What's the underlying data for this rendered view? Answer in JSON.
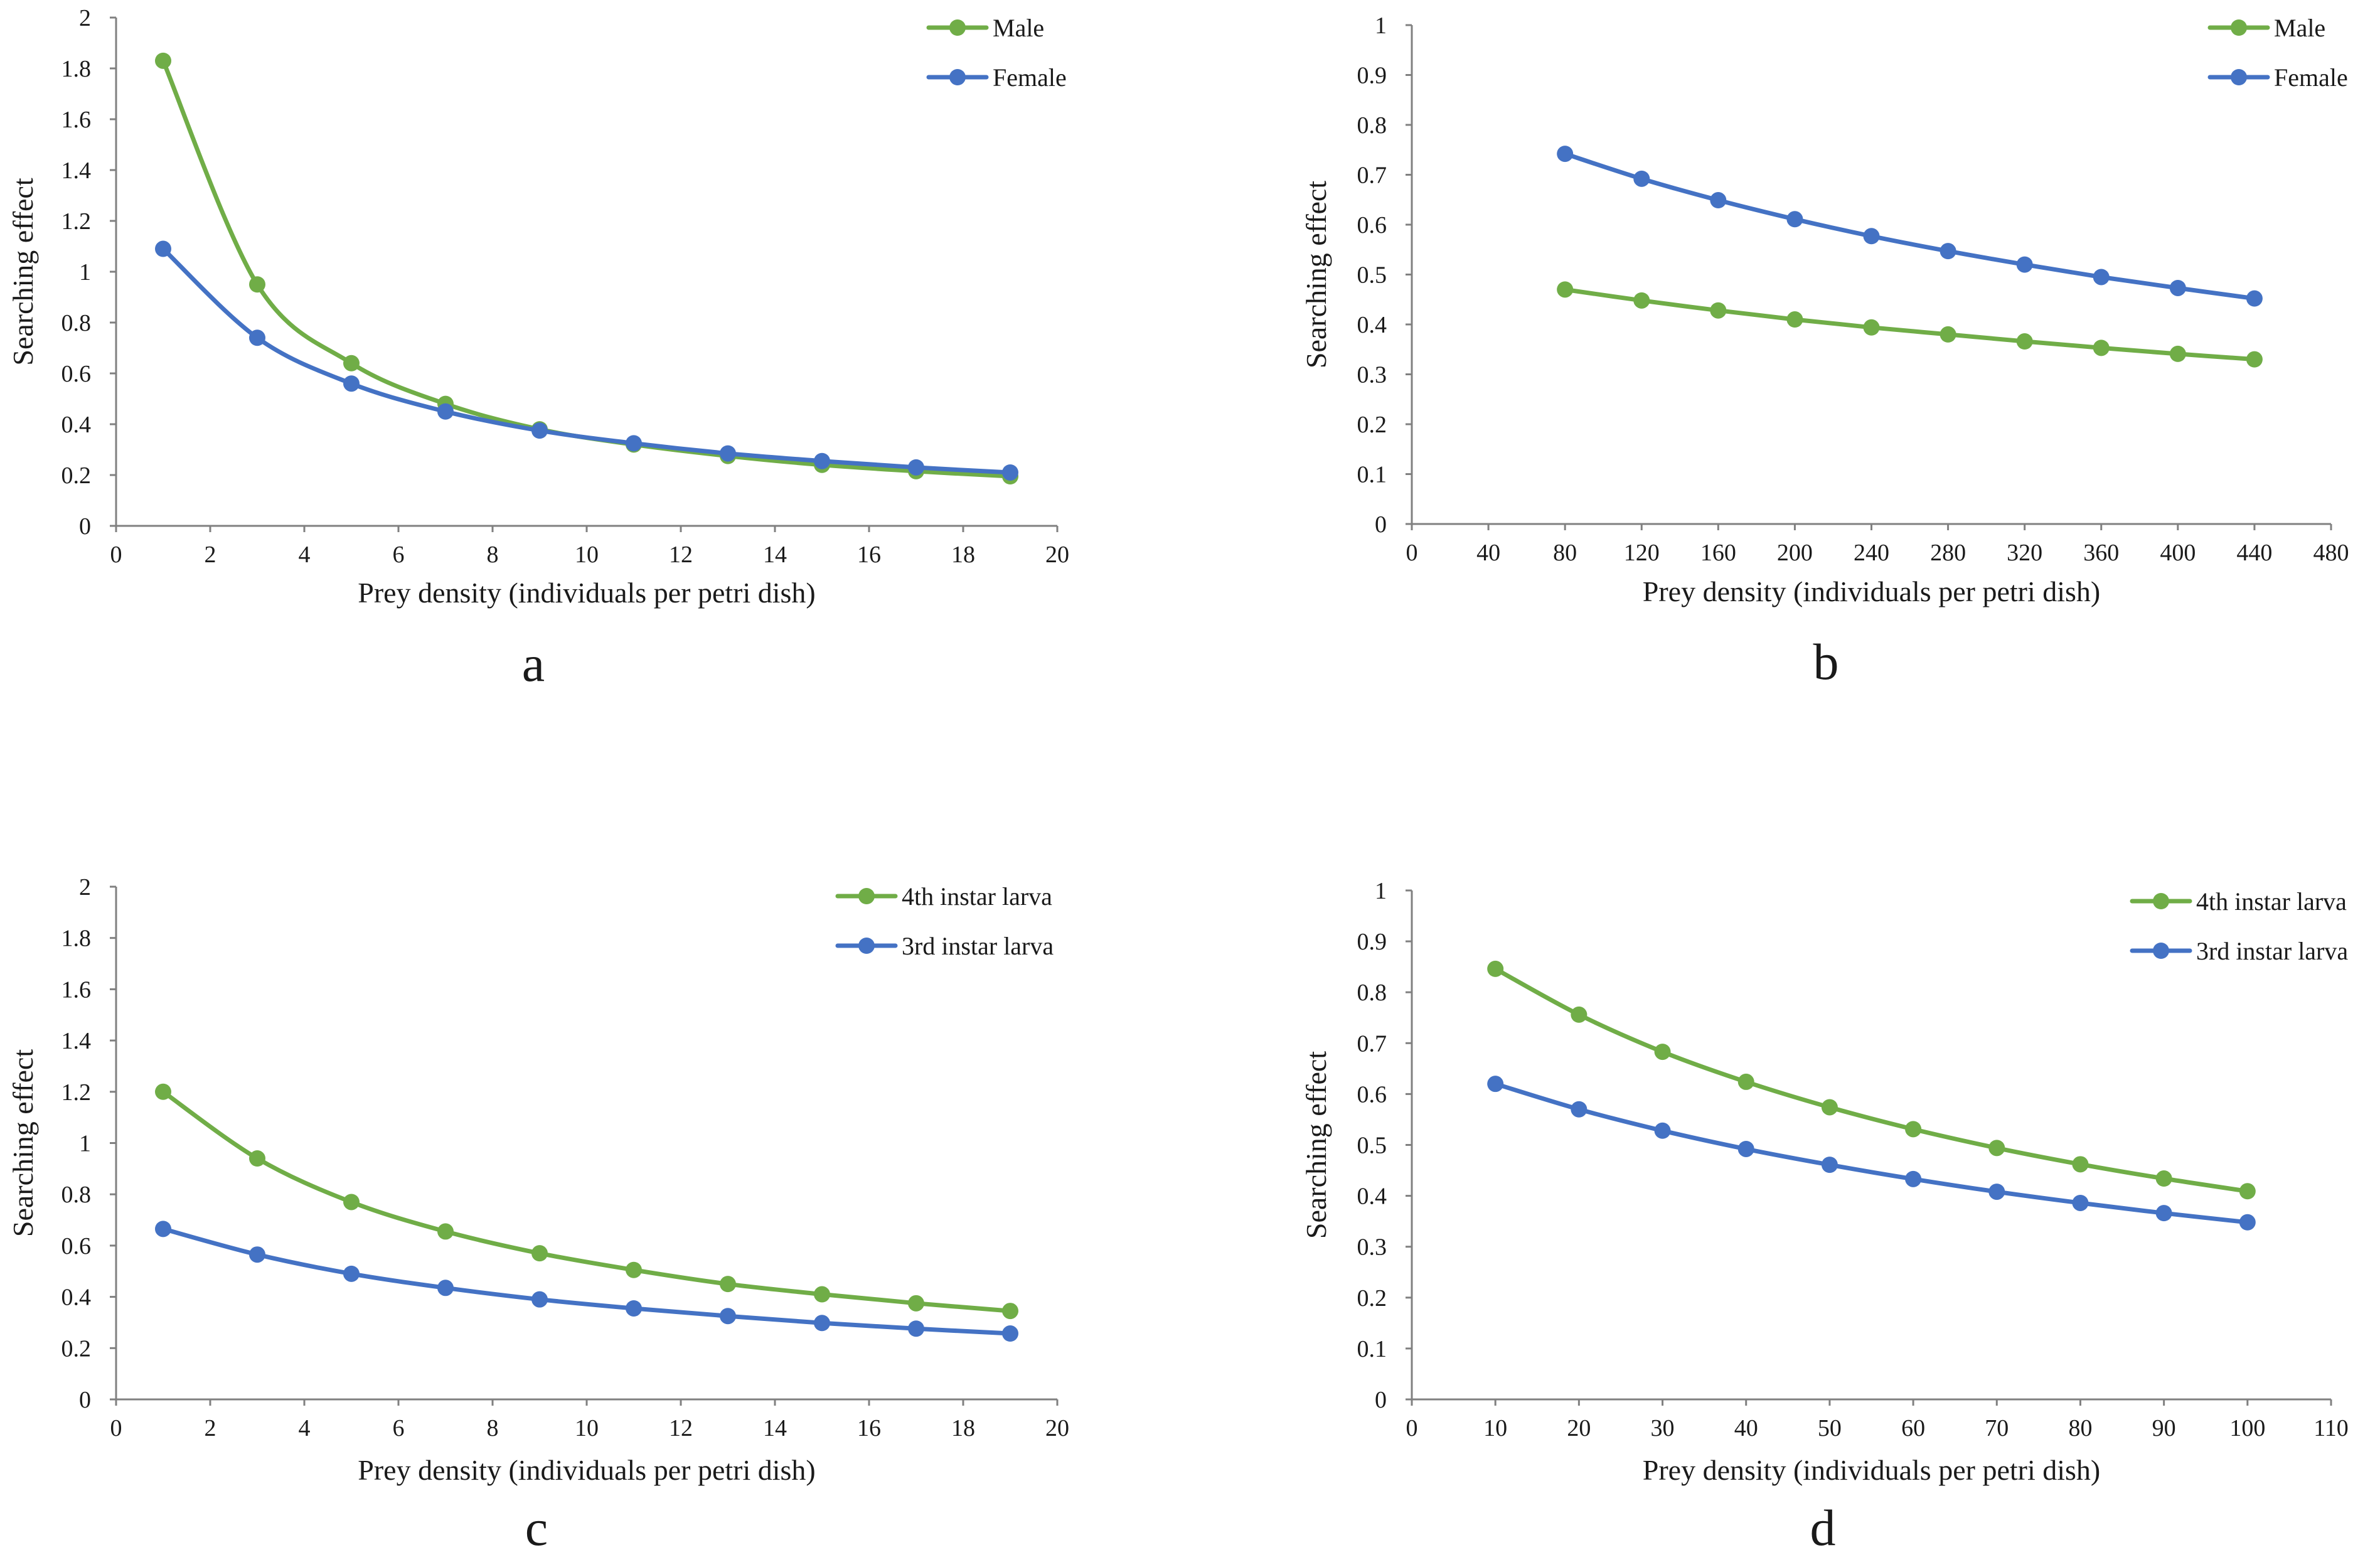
{
  "colors": {
    "green": "#70AD47",
    "blue": "#4472C4"
  },
  "chart_data": [
    {
      "type": "line",
      "panel_label": "a",
      "xlabel": "Prey density (individuals per petri dish)",
      "ylabel": "Searching effect",
      "xlim": [
        0,
        20
      ],
      "ylim": [
        0,
        2
      ],
      "x_ticks": [
        0,
        2,
        4,
        6,
        8,
        10,
        12,
        14,
        16,
        18,
        20
      ],
      "y_ticks": [
        0,
        0.2,
        0.4,
        0.6,
        0.8,
        1,
        1.2,
        1.4,
        1.6,
        1.8,
        2
      ],
      "x": [
        1,
        3,
        5,
        7,
        9,
        11,
        13,
        15,
        17,
        19
      ],
      "legend_position": "top-right",
      "series": [
        {
          "name": "Male",
          "color": "#70AD47",
          "values": [
            1.83,
            0.95,
            0.64,
            0.48,
            0.38,
            0.32,
            0.275,
            0.24,
            0.215,
            0.195
          ]
        },
        {
          "name": "Female",
          "color": "#4472C4",
          "values": [
            1.09,
            0.74,
            0.56,
            0.45,
            0.375,
            0.325,
            0.285,
            0.255,
            0.23,
            0.21
          ]
        }
      ]
    },
    {
      "type": "line",
      "panel_label": "b",
      "xlabel": "Prey density (individuals per petri dish)",
      "ylabel": "Searching effect",
      "xlim": [
        0,
        480
      ],
      "ylim": [
        0,
        1
      ],
      "x_ticks": [
        0,
        40,
        80,
        120,
        160,
        200,
        240,
        280,
        320,
        360,
        400,
        440,
        480
      ],
      "y_ticks": [
        0,
        0.1,
        0.2,
        0.3,
        0.4,
        0.5,
        0.6,
        0.7,
        0.8,
        0.9,
        1
      ],
      "x": [
        80,
        120,
        160,
        200,
        240,
        280,
        320,
        360,
        400,
        440
      ],
      "legend_position": "top-right",
      "series": [
        {
          "name": "Male",
          "color": "#70AD47",
          "values": [
            0.47,
            0.448,
            0.428,
            0.41,
            0.394,
            0.38,
            0.366,
            0.353,
            0.341,
            0.33
          ]
        },
        {
          "name": "Female",
          "color": "#4472C4",
          "values": [
            0.742,
            0.692,
            0.649,
            0.611,
            0.577,
            0.547,
            0.52,
            0.495,
            0.473,
            0.452
          ]
        }
      ]
    },
    {
      "type": "line",
      "panel_label": "c",
      "xlabel": "Prey density (individuals per petri dish)",
      "ylabel": "Searching effect",
      "xlim": [
        0,
        20
      ],
      "ylim": [
        0,
        2
      ],
      "x_ticks": [
        0,
        2,
        4,
        6,
        8,
        10,
        12,
        14,
        16,
        18,
        20
      ],
      "y_ticks": [
        0,
        0.2,
        0.4,
        0.6,
        0.8,
        1,
        1.2,
        1.4,
        1.6,
        1.8,
        2
      ],
      "x": [
        1,
        3,
        5,
        7,
        9,
        11,
        13,
        15,
        17,
        19
      ],
      "legend_position": "top-right",
      "series": [
        {
          "name": "4th instar larva",
          "color": "#70AD47",
          "values": [
            1.2,
            0.94,
            0.77,
            0.655,
            0.57,
            0.505,
            0.45,
            0.41,
            0.375,
            0.345
          ]
        },
        {
          "name": "3rd instar larva",
          "color": "#4472C4",
          "values": [
            0.665,
            0.565,
            0.49,
            0.435,
            0.39,
            0.355,
            0.325,
            0.298,
            0.276,
            0.257
          ]
        }
      ]
    },
    {
      "type": "line",
      "panel_label": "d",
      "xlabel": "Prey density (individuals per petri dish)",
      "ylabel": "Searching effect",
      "xlim": [
        0,
        110
      ],
      "ylim": [
        0,
        1
      ],
      "x_ticks": [
        0,
        10,
        20,
        30,
        40,
        50,
        60,
        70,
        80,
        90,
        100,
        110
      ],
      "y_ticks": [
        0,
        0.1,
        0.2,
        0.3,
        0.4,
        0.5,
        0.6,
        0.7,
        0.8,
        0.9,
        1
      ],
      "x": [
        10,
        20,
        30,
        40,
        50,
        60,
        70,
        80,
        90,
        100
      ],
      "legend_position": "top-right",
      "series": [
        {
          "name": "4th instar larva",
          "color": "#70AD47",
          "values": [
            0.846,
            0.756,
            0.683,
            0.624,
            0.574,
            0.531,
            0.494,
            0.462,
            0.434,
            0.409
          ]
        },
        {
          "name": "3rd instar larva",
          "color": "#4472C4",
          "values": [
            0.62,
            0.57,
            0.528,
            0.492,
            0.461,
            0.433,
            0.408,
            0.386,
            0.366,
            0.348
          ]
        }
      ]
    }
  ]
}
